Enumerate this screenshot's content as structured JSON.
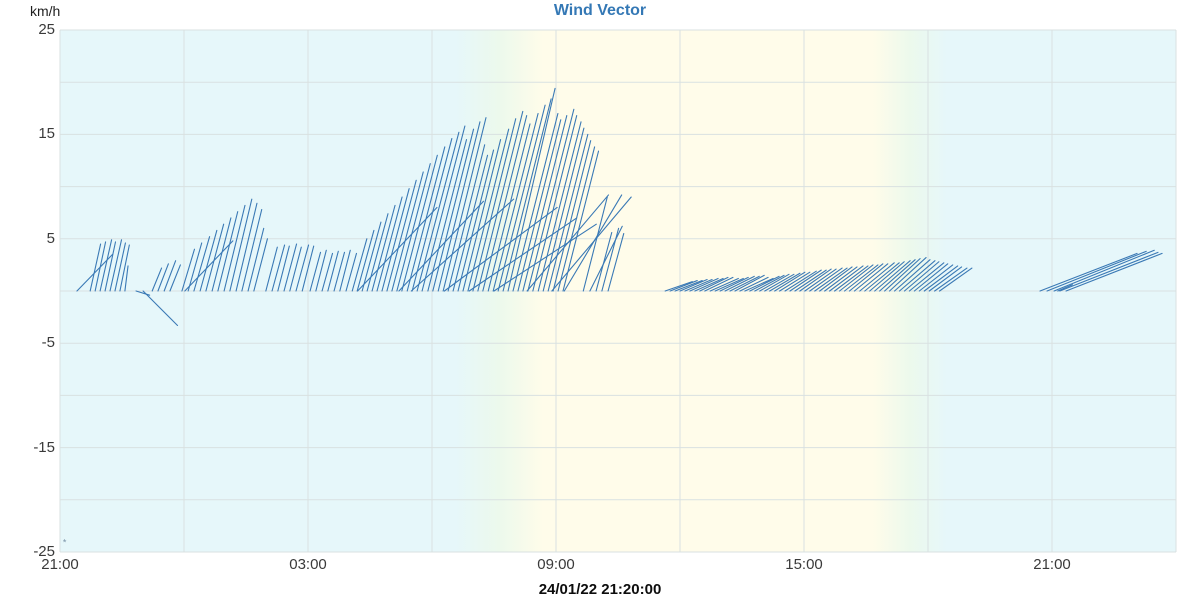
{
  "title": "Wind Vector",
  "y_axis": {
    "unit": "km/h",
    "min": -25,
    "max": 25,
    "grid_step": 5,
    "tick_labels": [
      25,
      15,
      5,
      -5,
      -15,
      -25
    ]
  },
  "x_axis": {
    "span_hours": 27,
    "grid_step_hours": 3,
    "ticks": [
      {
        "t": 0,
        "label": "21:00"
      },
      {
        "t": 6,
        "label": "03:00"
      },
      {
        "t": 12,
        "label": "09:00"
      },
      {
        "t": 18,
        "label": "15:00"
      },
      {
        "t": 24,
        "label": "21:00"
      }
    ],
    "datetime_label": "24/01/22 21:20:00"
  },
  "colors": {
    "title": "#3478b5",
    "vector": "#3a79b5",
    "night_bg": "#e6f7fa",
    "twilight_bg": "#ecf9ec",
    "day_bg": "#fffcea",
    "grid": "#d9e1e1",
    "text": "#3a3a3a"
  },
  "day_band": {
    "sunrise_start_h": 9.56,
    "sunrise_end_h": 11.69,
    "sunset_start_h": 19.67,
    "sunset_end_h": 21.46
  },
  "corner_marker": {
    "glyph": "*",
    "t": 0.07,
    "v": -24.4
  },
  "chart_data": {
    "type": "vector",
    "title": "Wind Vector",
    "ylabel": "km/h",
    "ylim": [
      -25,
      25
    ],
    "units": {
      "t": "hours since 21:00",
      "u": "km/h eastward",
      "v": "km/h northward"
    },
    "baseline_v": 0,
    "vectors": [
      [
        0.41,
        3.4,
        3.5
      ],
      [
        0.73,
        1.0,
        4.5
      ],
      [
        0.85,
        1.0,
        4.7
      ],
      [
        0.97,
        1.1,
        4.9
      ],
      [
        1.09,
        1.0,
        4.7
      ],
      [
        1.21,
        1.1,
        4.9
      ],
      [
        1.33,
        1.0,
        4.6
      ],
      [
        1.45,
        0.9,
        4.4
      ],
      [
        1.57,
        0.3,
        2.4
      ],
      [
        1.84,
        1.3,
        -0.4
      ],
      [
        2.01,
        3.3,
        -3.3
      ],
      [
        2.23,
        0.9,
        2.2
      ],
      [
        2.37,
        1.0,
        2.6
      ],
      [
        2.52,
        1.1,
        2.9
      ],
      [
        2.66,
        1.0,
        2.5
      ],
      [
        2.95,
        1.2,
        4.0
      ],
      [
        3.02,
        4.6,
        4.8
      ],
      [
        3.1,
        1.3,
        4.6
      ],
      [
        3.24,
        1.5,
        5.2
      ],
      [
        3.39,
        1.6,
        5.8
      ],
      [
        3.53,
        1.7,
        6.4
      ],
      [
        3.68,
        1.8,
        7.0
      ],
      [
        3.82,
        1.9,
        7.6
      ],
      [
        3.97,
        2.0,
        8.2
      ],
      [
        4.11,
        2.1,
        8.8
      ],
      [
        4.26,
        2.0,
        8.4
      ],
      [
        4.4,
        1.9,
        7.8
      ],
      [
        4.55,
        1.5,
        6.0
      ],
      [
        4.69,
        1.3,
        5.0
      ],
      [
        4.98,
        1.1,
        4.2
      ],
      [
        5.13,
        1.2,
        4.4
      ],
      [
        5.27,
        1.1,
        4.3
      ],
      [
        5.42,
        1.2,
        4.5
      ],
      [
        5.56,
        1.1,
        4.2
      ],
      [
        5.71,
        1.2,
        4.4
      ],
      [
        5.86,
        1.1,
        4.3
      ],
      [
        6.05,
        1.0,
        3.7
      ],
      [
        6.19,
        1.0,
        3.9
      ],
      [
        6.34,
        1.0,
        3.6
      ],
      [
        6.48,
        1.0,
        3.8
      ],
      [
        6.63,
        1.0,
        3.7
      ],
      [
        6.77,
        1.0,
        3.9
      ],
      [
        6.92,
        1.0,
        3.6
      ],
      [
        7.07,
        1.4,
        5.0
      ],
      [
        7.19,
        1.6,
        5.8
      ],
      [
        7.2,
        7.6,
        8.0
      ],
      [
        7.31,
        1.8,
        6.6
      ],
      [
        7.43,
        2.0,
        7.4
      ],
      [
        7.55,
        2.2,
        8.2
      ],
      [
        7.67,
        2.4,
        9.0
      ],
      [
        7.79,
        2.6,
        9.8
      ],
      [
        7.91,
        2.8,
        10.6
      ],
      [
        8.03,
        3.0,
        11.4
      ],
      [
        8.15,
        3.2,
        12.2
      ],
      [
        8.2,
        8.1,
        8.6
      ],
      [
        8.27,
        3.4,
        13.0
      ],
      [
        8.4,
        3.6,
        13.8
      ],
      [
        8.52,
        3.8,
        14.6
      ],
      [
        8.64,
        4.0,
        15.2
      ],
      [
        8.76,
        4.1,
        15.8
      ],
      [
        8.5,
        9.8,
        8.8
      ],
      [
        8.9,
        3.7,
        14.5
      ],
      [
        9.02,
        3.9,
        15.5
      ],
      [
        9.15,
        4.0,
        16.2
      ],
      [
        9.27,
        4.1,
        16.6
      ],
      [
        9.3,
        10.8,
        8.0
      ],
      [
        9.39,
        3.5,
        14.0
      ],
      [
        9.51,
        3.3,
        13.0
      ],
      [
        9.63,
        3.4,
        13.5
      ],
      [
        9.75,
        3.6,
        14.5
      ],
      [
        9.87,
        3.9,
        15.5
      ],
      [
        9.9,
        10.3,
        7.0
      ],
      [
        9.99,
        4.1,
        16.5
      ],
      [
        10.11,
        4.3,
        17.2
      ],
      [
        10.23,
        4.2,
        16.8
      ],
      [
        10.36,
        4.0,
        16.0
      ],
      [
        10.48,
        4.3,
        17.0
      ],
      [
        10.5,
        9.8,
        6.4
      ],
      [
        10.6,
        4.5,
        17.8
      ],
      [
        10.72,
        4.6,
        18.4
      ],
      [
        10.84,
        4.5,
        19.4
      ],
      [
        10.96,
        4.3,
        17.0
      ],
      [
        11.08,
        4.1,
        16.4
      ],
      [
        11.2,
        4.2,
        16.8
      ],
      [
        11.3,
        7.8,
        9.2
      ],
      [
        11.32,
        4.4,
        17.4
      ],
      [
        11.44,
        4.2,
        16.8
      ],
      [
        11.57,
        4.1,
        16.2
      ],
      [
        11.69,
        3.9,
        15.6
      ],
      [
        11.81,
        3.8,
        15.0
      ],
      [
        11.9,
        7.6,
        9.0
      ],
      [
        11.93,
        3.6,
        14.4
      ],
      [
        12.05,
        3.5,
        13.8
      ],
      [
        12.17,
        3.4,
        13.4
      ],
      [
        12.2,
        5.5,
        9.2
      ],
      [
        12.66,
        2.3,
        9.0
      ],
      [
        12.82,
        3.1,
        6.2
      ],
      [
        12.97,
        1.5,
        5.6
      ],
      [
        13.11,
        1.6,
        6.0
      ],
      [
        13.26,
        1.5,
        5.5
      ],
      [
        14.64,
        2.6,
        0.9
      ],
      [
        14.76,
        2.6,
        1.0
      ],
      [
        14.88,
        2.6,
        1.0
      ],
      [
        15.0,
        2.6,
        1.1
      ],
      [
        15.12,
        2.6,
        1.1
      ],
      [
        15.24,
        2.7,
        1.2
      ],
      [
        15.36,
        2.7,
        1.2
      ],
      [
        15.48,
        2.7,
        1.3
      ],
      [
        15.6,
        2.7,
        1.3
      ],
      [
        15.73,
        2.7,
        1.2
      ],
      [
        15.85,
        2.7,
        1.2
      ],
      [
        15.97,
        2.7,
        1.3
      ],
      [
        16.09,
        2.8,
        1.4
      ],
      [
        16.21,
        2.8,
        1.4
      ],
      [
        16.33,
        2.8,
        1.5
      ],
      [
        16.45,
        2.7,
        1.3
      ],
      [
        16.57,
        2.7,
        1.2
      ],
      [
        16.69,
        2.8,
        1.4
      ],
      [
        16.81,
        2.8,
        1.5
      ],
      [
        16.93,
        2.8,
        1.6
      ],
      [
        17.05,
        2.8,
        1.6
      ],
      [
        17.17,
        2.9,
        1.7
      ],
      [
        17.29,
        2.9,
        1.8
      ],
      [
        17.41,
        2.9,
        1.8
      ],
      [
        17.54,
        3.0,
        1.9
      ],
      [
        17.66,
        3.0,
        2.0
      ],
      [
        17.78,
        3.0,
        2.0
      ],
      [
        17.9,
        3.0,
        2.1
      ],
      [
        18.02,
        3.0,
        2.1
      ],
      [
        18.14,
        3.1,
        2.2
      ],
      [
        18.26,
        3.1,
        2.2
      ],
      [
        18.38,
        3.1,
        2.3
      ],
      [
        18.5,
        3.1,
        2.3
      ],
      [
        18.62,
        3.2,
        2.4
      ],
      [
        18.74,
        3.2,
        2.4
      ],
      [
        18.86,
        3.2,
        2.5
      ],
      [
        18.98,
        3.2,
        2.5
      ],
      [
        19.1,
        3.2,
        2.6
      ],
      [
        19.22,
        3.2,
        2.6
      ],
      [
        19.35,
        3.3,
        2.7
      ],
      [
        19.47,
        3.3,
        2.7
      ],
      [
        19.59,
        3.3,
        2.8
      ],
      [
        19.71,
        3.4,
        2.9
      ],
      [
        19.83,
        3.4,
        3.0
      ],
      [
        19.95,
        3.4,
        3.1
      ],
      [
        20.07,
        3.5,
        3.2
      ],
      [
        20.19,
        3.4,
        3.0
      ],
      [
        20.31,
        3.4,
        2.9
      ],
      [
        20.43,
        3.3,
        2.8
      ],
      [
        20.55,
        3.3,
        2.7
      ],
      [
        20.67,
        3.2,
        2.6
      ],
      [
        20.79,
        3.2,
        2.5
      ],
      [
        20.91,
        3.2,
        2.4
      ],
      [
        21.03,
        3.1,
        2.3
      ],
      [
        21.16,
        3.1,
        2.2
      ],
      [
        21.28,
        3.1,
        2.2
      ],
      [
        23.71,
        9.3,
        3.6
      ],
      [
        23.88,
        9.5,
        3.8
      ],
      [
        24.05,
        9.6,
        3.9
      ],
      [
        24.14,
        1.4,
        0.6
      ],
      [
        24.19,
        9.4,
        3.7
      ],
      [
        24.34,
        9.2,
        3.6
      ]
    ]
  }
}
